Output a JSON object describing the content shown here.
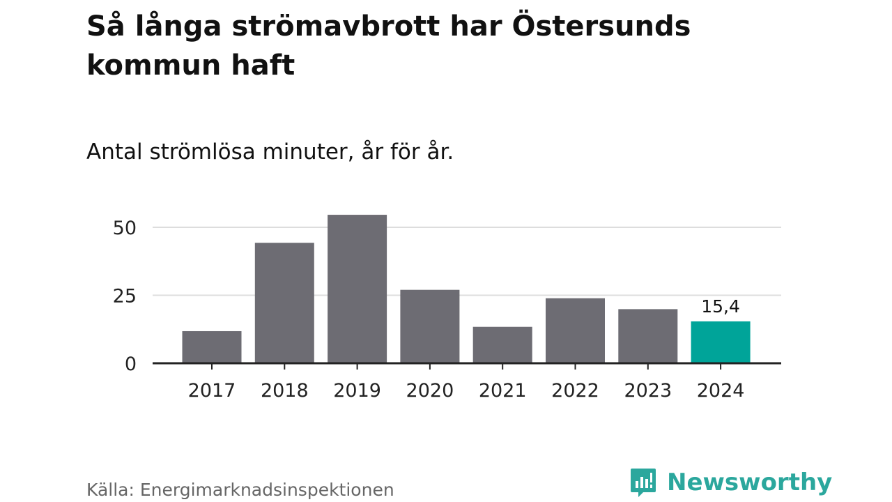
{
  "title": "Så långa strömavbrott har Östersunds kommun haft",
  "subtitle": "Antal strömlösa minuter, år för år.",
  "source": "Källa: Energimarknadsinspektionen",
  "brand": {
    "name": "Newsworthy",
    "icon": "newsworthy-logo-icon",
    "color": "#2ba79d"
  },
  "colors": {
    "bar": "#6d6c73",
    "highlight": "#00a499",
    "grid": "#dddddd",
    "axis": "#222222"
  },
  "chart_data": {
    "type": "bar",
    "title": "Så långa strömavbrott har Östersunds kommun haft",
    "subtitle": "Antal strömlösa minuter, år för år.",
    "xlabel": "",
    "ylabel": "",
    "categories": [
      "2017",
      "2018",
      "2019",
      "2020",
      "2021",
      "2022",
      "2023",
      "2024"
    ],
    "values": [
      11.8,
      44.3,
      54.6,
      27.0,
      13.4,
      23.9,
      19.9,
      15.4
    ],
    "ylim": [
      0,
      57
    ],
    "yticks": [
      0,
      25,
      50
    ],
    "ytick_labels": [
      "0",
      "25",
      "50"
    ],
    "grid": true,
    "highlight_index": 7,
    "annotations": [
      {
        "category": "2024",
        "label": "15,4"
      }
    ]
  }
}
